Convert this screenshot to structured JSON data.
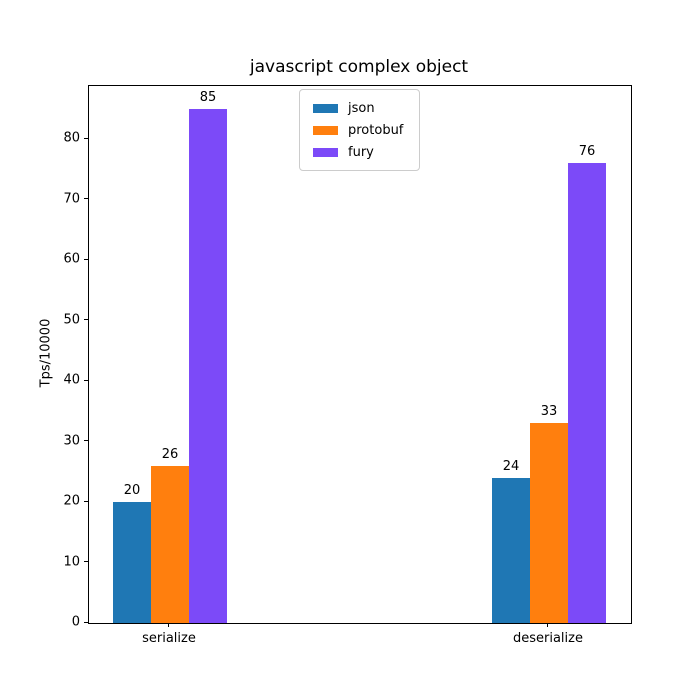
{
  "chart_data": {
    "type": "bar",
    "title": "javascript complex object",
    "xlabel": "",
    "ylabel": "Tps/10000",
    "categories": [
      "serialize",
      "deserialize"
    ],
    "series": [
      {
        "name": "json",
        "color": "#1f77b4",
        "values": [
          20,
          24
        ]
      },
      {
        "name": "protobuf",
        "color": "#ff7f0e",
        "values": [
          26,
          33
        ]
      },
      {
        "name": "fury",
        "color": "#7c4af8",
        "values": [
          85,
          76
        ]
      }
    ],
    "yticks": [
      0,
      10,
      20,
      30,
      40,
      50,
      60,
      70,
      80
    ],
    "ylim": [
      0,
      88.8
    ],
    "grid": false,
    "bar_value_labels_shown": true,
    "legend_position": "upper center inside plot",
    "text_color": "#000000",
    "background_color": "#ffffff"
  }
}
